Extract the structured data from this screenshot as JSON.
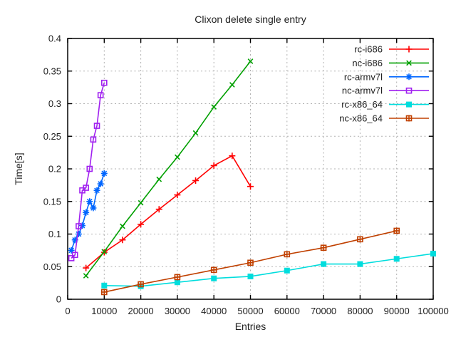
{
  "title": "Clixon delete single entry",
  "chart_data": {
    "type": "line",
    "title": "Clixon delete single entry",
    "xlabel": "Entries",
    "ylabel": "Time[s]",
    "xlim": [
      0,
      100000
    ],
    "ylim": [
      0,
      0.4
    ],
    "xticks": [
      0,
      10000,
      20000,
      30000,
      40000,
      50000,
      60000,
      70000,
      80000,
      90000,
      100000
    ],
    "xtick_labels": [
      "0",
      "10000",
      "20000",
      "30000",
      "40000",
      "50000",
      "60000",
      "70000",
      "80000",
      "90000",
      "100000"
    ],
    "yticks": [
      0,
      0.05,
      0.1,
      0.15,
      0.2,
      0.25,
      0.3,
      0.35,
      0.4
    ],
    "ytick_labels": [
      "0",
      "0.05",
      "0.1",
      "0.15",
      "0.2",
      "0.25",
      "0.3",
      "0.35",
      "0.4"
    ],
    "grid": true,
    "legend_position": "top-right-inside",
    "background_color": "#ffffff",
    "border_color": "#000000",
    "grid_color": "#b0b0b0",
    "text_color": "#202020",
    "series": [
      {
        "name": "rc-i686",
        "color": "#ff0000",
        "marker": "plus",
        "x": [
          5000,
          10000,
          15000,
          20000,
          25000,
          30000,
          35000,
          40000,
          45000,
          50000
        ],
        "y": [
          0.048,
          0.072,
          0.091,
          0.115,
          0.138,
          0.16,
          0.182,
          0.205,
          0.22,
          0.173
        ]
      },
      {
        "name": "nc-i686",
        "color": "#00a000",
        "marker": "cross",
        "x": [
          5000,
          10000,
          15000,
          20000,
          25000,
          30000,
          35000,
          40000,
          45000,
          50000
        ],
        "y": [
          0.036,
          0.073,
          0.112,
          0.148,
          0.184,
          0.218,
          0.255,
          0.295,
          0.329,
          0.365
        ]
      },
      {
        "name": "rc-armv7l",
        "color": "#0066ff",
        "marker": "asterisk",
        "x": [
          1000,
          2000,
          3000,
          4000,
          5000,
          6000,
          7000,
          8000,
          9000,
          10000
        ],
        "y": [
          0.075,
          0.091,
          0.1,
          0.113,
          0.133,
          0.15,
          0.14,
          0.167,
          0.177,
          0.193
        ]
      },
      {
        "name": "nc-armv7l",
        "color": "#a020f0",
        "marker": "open-square",
        "x": [
          1000,
          2000,
          3000,
          4000,
          5000,
          6000,
          7000,
          8000,
          9000,
          10000
        ],
        "y": [
          0.063,
          0.068,
          0.112,
          0.167,
          0.171,
          0.2,
          0.245,
          0.266,
          0.313,
          0.332
        ]
      },
      {
        "name": "rc-x86_64",
        "color": "#00dddd",
        "marker": "filled-square",
        "x": [
          10000,
          20000,
          30000,
          40000,
          50000,
          60000,
          70000,
          80000,
          90000,
          100000
        ],
        "y": [
          0.021,
          0.02,
          0.026,
          0.032,
          0.035,
          0.044,
          0.054,
          0.054,
          0.062,
          0.07
        ]
      },
      {
        "name": "nc-x86_64",
        "color": "#c04000",
        "marker": "boxed-plus",
        "x": [
          10000,
          20000,
          30000,
          40000,
          50000,
          60000,
          70000,
          80000,
          90000
        ],
        "y": [
          0.011,
          0.023,
          0.034,
          0.045,
          0.056,
          0.069,
          0.079,
          0.092,
          0.105
        ]
      }
    ]
  }
}
